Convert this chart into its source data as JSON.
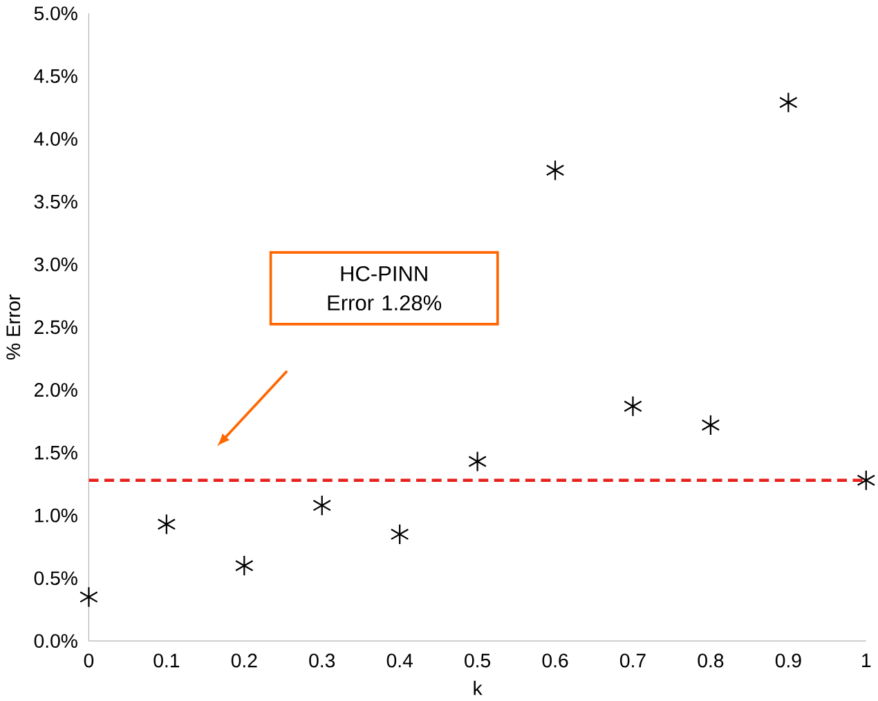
{
  "chart_data": {
    "type": "scatter",
    "xlabel": "k",
    "ylabel": "% Error",
    "marker": "cross",
    "color": "#000000",
    "x": [
      0,
      0.1,
      0.2,
      0.3,
      0.4,
      0.5,
      0.6,
      0.7,
      0.8,
      0.9,
      1
    ],
    "values": [
      0.35,
      0.93,
      0.6,
      1.08,
      0.85,
      1.43,
      3.75,
      1.87,
      1.72,
      4.29,
      1.28
    ],
    "xlim": [
      0,
      1
    ],
    "xticks": [
      0,
      0.1,
      0.2,
      0.3,
      0.4,
      0.5,
      0.6,
      0.7,
      0.8,
      0.9,
      1
    ],
    "ylim": [
      0,
      5
    ],
    "yticks": [
      {
        "value": 0,
        "label": "0.0%"
      },
      {
        "value": 0.5,
        "label": "0.5%"
      },
      {
        "value": 1,
        "label": "1.0%"
      },
      {
        "value": 1.5,
        "label": "1.5%"
      },
      {
        "value": 2,
        "label": "2.0%"
      },
      {
        "value": 2.5,
        "label": "2.5%"
      },
      {
        "value": 3,
        "label": "3.0%"
      },
      {
        "value": 3.5,
        "label": "3.5%"
      },
      {
        "value": 4,
        "label": "4.0%"
      },
      {
        "value": 4.5,
        "label": "4.5%"
      },
      {
        "value": 5,
        "label": "5.0%"
      }
    ],
    "ref_lines": [
      {
        "axis": "y",
        "value": 1.28,
        "color": "#e8201c",
        "line_style": "dashed"
      }
    ],
    "annotations": [
      "HC-PINN Error 1.28%"
    ]
  }
}
